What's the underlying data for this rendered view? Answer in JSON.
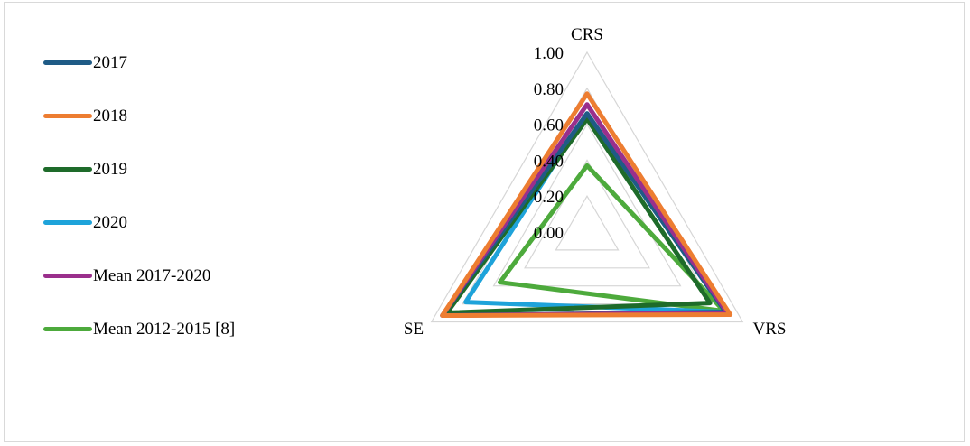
{
  "chart_data": {
    "type": "radar",
    "axes": [
      "CRS",
      "VRS",
      "SE"
    ],
    "tick_labels": [
      "0.00",
      "0.20",
      "0.40",
      "0.60",
      "0.80",
      "1.00"
    ],
    "ticks": [
      0,
      0.2,
      0.4,
      0.6,
      0.8,
      1.0
    ],
    "range": [
      0,
      1
    ],
    "grid": true,
    "legend_position": "left",
    "series": [
      {
        "name": "2017",
        "color": "#1f5b86",
        "values": [
          0.66,
          0.89,
          0.93
        ]
      },
      {
        "name": "2018",
        "color": "#ed7d31",
        "values": [
          0.77,
          0.92,
          0.93
        ]
      },
      {
        "name": "2019",
        "color": "#1e6b2a",
        "values": [
          0.63,
          0.79,
          0.9
        ]
      },
      {
        "name": "2020",
        "color": "#1ea3da",
        "values": [
          0.66,
          0.89,
          0.78
        ]
      },
      {
        "name": "Mean 2017-2020",
        "color": "#9a2f8c",
        "values": [
          0.71,
          0.9,
          0.93
        ]
      },
      {
        "name": "Mean 2012-2015 [8]",
        "color": "#4daa3c",
        "values": [
          0.37,
          0.88,
          0.56
        ]
      }
    ]
  }
}
